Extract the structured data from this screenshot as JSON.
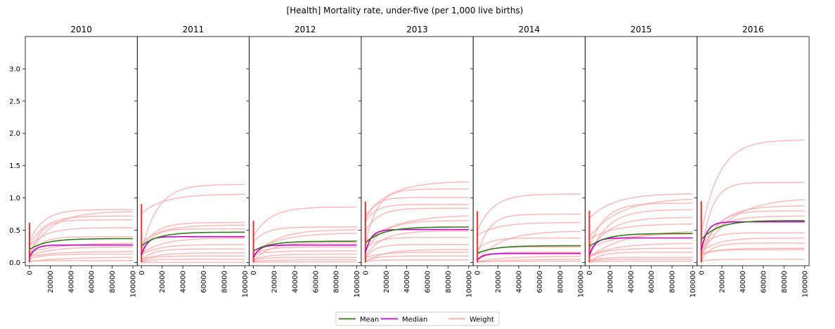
{
  "chart_data": {
    "type": "line",
    "title": "[Health] Mortality rate, under-five (per 1,000 live births)",
    "panels": [
      {
        "title": "2010",
        "mean_final": 0.37,
        "median_final": 0.27,
        "weights": [
          0.82,
          0.79,
          0.72,
          0.66,
          0.54,
          0.4,
          0.3,
          0.24,
          0.17,
          0.13,
          0.08,
          0.03
        ]
      },
      {
        "title": "2011",
        "mean_final": 0.47,
        "median_final": 0.4,
        "weights": [
          1.21,
          1.06,
          0.62,
          0.58,
          0.52,
          0.38,
          0.28,
          0.21,
          0.15,
          0.1,
          0.05,
          0.0
        ]
      },
      {
        "title": "2012",
        "mean_final": 0.33,
        "median_final": 0.27,
        "weights": [
          0.86,
          0.55,
          0.51,
          0.46,
          0.31,
          0.24,
          0.18,
          0.13,
          0.08,
          0.04,
          0.01
        ]
      },
      {
        "title": "2013",
        "mean_final": 0.55,
        "median_final": 0.51,
        "weights": [
          1.26,
          1.14,
          1.01,
          0.9,
          0.84,
          0.74,
          0.65,
          0.49,
          0.39,
          0.28,
          0.2,
          0.16,
          0.1,
          0.04
        ]
      },
      {
        "title": "2014",
        "mean_final": 0.26,
        "median_final": 0.14,
        "weights": [
          1.06,
          0.75,
          0.62,
          0.49,
          0.38,
          0.24,
          0.16,
          0.1,
          0.05,
          0.02
        ]
      },
      {
        "title": "2015",
        "mean_final": 0.45,
        "median_final": 0.38,
        "weights": [
          1.07,
          1.0,
          0.92,
          0.82,
          0.7,
          0.6,
          0.5,
          0.45,
          0.3,
          0.22,
          0.16,
          0.08,
          0.05,
          0.02
        ]
      },
      {
        "title": "2016",
        "mean_final": 0.65,
        "median_final": 0.63,
        "weights": [
          1.9,
          1.24,
          1.0,
          0.88,
          0.8,
          0.72,
          0.46,
          0.38,
          0.3,
          0.22,
          0.2,
          0.05
        ]
      }
    ],
    "x_ticks": [
      "0",
      "20000",
      "40000",
      "60000",
      "80000",
      "100000"
    ],
    "x_range": [
      0,
      100000
    ],
    "y_ticks": [
      "0.0",
      "0.5",
      "1.0",
      "1.5",
      "2.0",
      "2.5",
      "3.0"
    ],
    "ylim": [
      -0.05,
      3.5
    ],
    "grid": false,
    "legend": {
      "placement": "bottom-center",
      "entries": [
        {
          "label": "Mean",
          "color": "#2e7d1f"
        },
        {
          "label": "Median",
          "color": "#c400c4"
        },
        {
          "label": "Weight",
          "color": "#ffa3a3"
        }
      ]
    }
  }
}
